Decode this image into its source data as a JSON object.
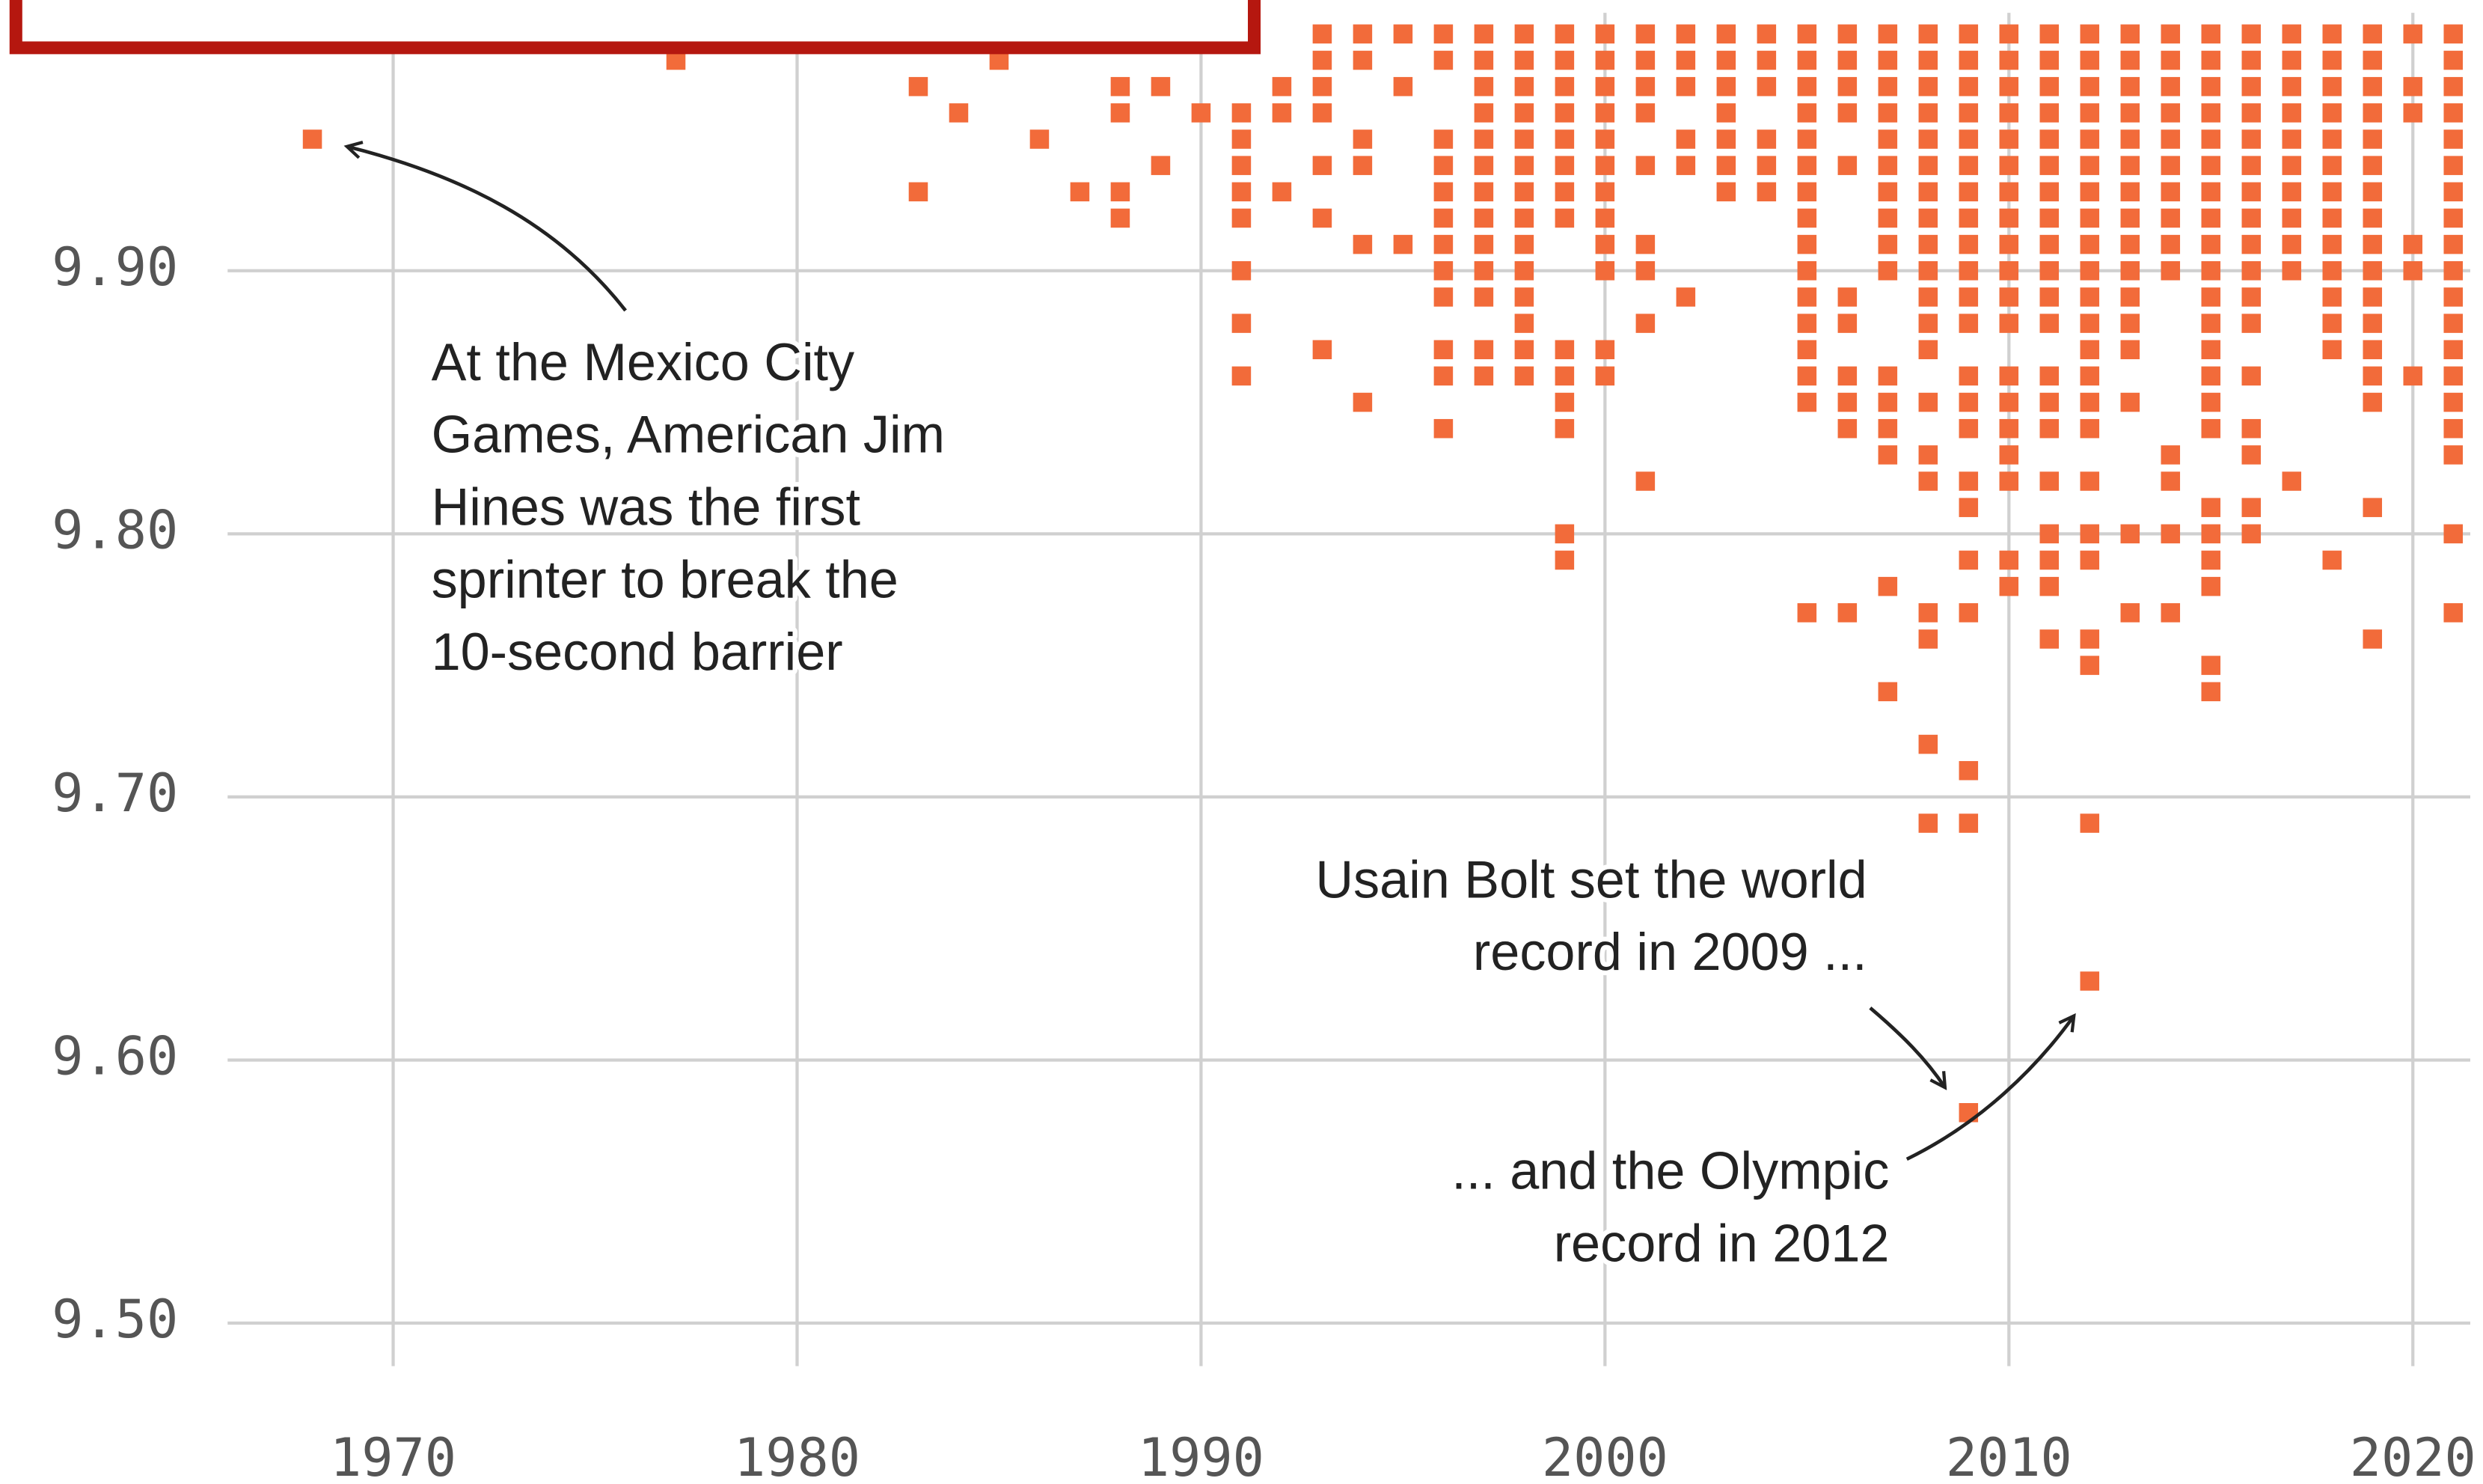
{
  "chart_data": {
    "type": "scatter",
    "color": "#f26b3a",
    "xlim": [
      1966,
      2021.5
    ],
    "ylim": [
      9.49,
      9.99
    ],
    "xticks": [
      1970,
      1980,
      1990,
      2000,
      2010,
      2020
    ],
    "yticks": [
      {
        "value": 9.5,
        "label": "9.50"
      },
      {
        "value": 9.6,
        "label": "9.60"
      },
      {
        "value": 9.7,
        "label": "9.70"
      },
      {
        "value": 9.8,
        "label": "9.80"
      },
      {
        "value": 9.9,
        "label": "9.90"
      }
    ],
    "grid": true,
    "annotations": [
      {
        "lines": [
          "At the Mexico City",
          "Games, American Jim",
          "Hines was the first",
          "sprinter to break the",
          "10-second barrier"
        ]
      },
      {
        "lines": [
          "Usain Bolt set the world",
          "record in 2009 ..."
        ]
      },
      {
        "lines": [
          "... and the Olympic",
          "record in 2012"
        ]
      }
    ],
    "x": [
      1968,
      1977,
      1983,
      1983,
      1984,
      1985,
      1986,
      1987,
      1988,
      1988,
      1988,
      1988,
      1989,
      1989,
      1990,
      1991,
      1991,
      1991,
      1991,
      1991,
      1991,
      1991,
      1991,
      1992,
      1992,
      1992,
      1993,
      1993,
      1993,
      1993,
      1993,
      1993,
      1993,
      1994,
      1994,
      1994,
      1994,
      1994,
      1994,
      1995,
      1995,
      1995,
      1996,
      1996,
      1996,
      1996,
      1996,
      1996,
      1996,
      1996,
      1996,
      1996,
      1996,
      1996,
      1997,
      1997,
      1997,
      1997,
      1997,
      1997,
      1997,
      1997,
      1997,
      1997,
      1997,
      1997,
      1997,
      1998,
      1998,
      1998,
      1998,
      1998,
      1998,
      1998,
      1998,
      1998,
      1998,
      1998,
      1998,
      1998,
      1998,
      1999,
      1999,
      1999,
      1999,
      1999,
      1999,
      1999,
      1999,
      1999,
      1999,
      1999,
      1999,
      1999,
      1999,
      2000,
      2000,
      2000,
      2000,
      2000,
      2000,
      2000,
      2000,
      2000,
      2000,
      2000,
      2000,
      2001,
      2001,
      2001,
      2001,
      2001,
      2001,
      2001,
      2001,
      2001,
      2002,
      2002,
      2002,
      2002,
      2002,
      2002,
      2003,
      2003,
      2003,
      2003,
      2003,
      2003,
      2003,
      2004,
      2004,
      2004,
      2004,
      2004,
      2004,
      2005,
      2005,
      2005,
      2005,
      2005,
      2005,
      2005,
      2005,
      2005,
      2005,
      2005,
      2005,
      2005,
      2005,
      2005,
      2005,
      2006,
      2006,
      2006,
      2006,
      2006,
      2006,
      2006,
      2006,
      2006,
      2006,
      2006,
      2007,
      2007,
      2007,
      2007,
      2007,
      2007,
      2007,
      2007,
      2007,
      2007,
      2007,
      2007,
      2007,
      2007,
      2007,
      2007,
      2008,
      2008,
      2008,
      2008,
      2008,
      2008,
      2008,
      2008,
      2008,
      2008,
      2008,
      2008,
      2008,
      2008,
      2008,
      2008,
      2008,
      2008,
      2008,
      2008,
      2009,
      2009,
      2009,
      2009,
      2009,
      2009,
      2009,
      2009,
      2009,
      2009,
      2009,
      2009,
      2009,
      2009,
      2009,
      2009,
      2009,
      2009,
      2009,
      2009,
      2009,
      2009,
      2010,
      2010,
      2010,
      2010,
      2010,
      2010,
      2010,
      2010,
      2010,
      2010,
      2010,
      2010,
      2010,
      2010,
      2010,
      2010,
      2010,
      2010,
      2010,
      2011,
      2011,
      2011,
      2011,
      2011,
      2011,
      2011,
      2011,
      2011,
      2011,
      2011,
      2011,
      2011,
      2011,
      2011,
      2011,
      2011,
      2011,
      2011,
      2011,
      2012,
      2012,
      2012,
      2012,
      2012,
      2012,
      2012,
      2012,
      2012,
      2012,
      2012,
      2012,
      2012,
      2012,
      2012,
      2012,
      2012,
      2012,
      2012,
      2012,
      2012,
      2012,
      2012,
      2013,
      2013,
      2013,
      2013,
      2013,
      2013,
      2013,
      2013,
      2013,
      2013,
      2013,
      2013,
      2013,
      2013,
      2013,
      2013,
      2014,
      2014,
      2014,
      2014,
      2014,
      2014,
      2014,
      2014,
      2014,
      2014,
      2014,
      2014,
      2014,
      2014,
      2015,
      2015,
      2015,
      2015,
      2015,
      2015,
      2015,
      2015,
      2015,
      2015,
      2015,
      2015,
      2015,
      2015,
      2015,
      2015,
      2015,
      2015,
      2015,
      2015,
      2015,
      2015,
      2016,
      2016,
      2016,
      2016,
      2016,
      2016,
      2016,
      2016,
      2016,
      2016,
      2016,
      2016,
      2016,
      2016,
      2016,
      2016,
      2016,
      2017,
      2017,
      2017,
      2017,
      2017,
      2017,
      2017,
      2017,
      2017,
      2017,
      2017,
      2018,
      2018,
      2018,
      2018,
      2018,
      2018,
      2018,
      2018,
      2018,
      2018,
      2018,
      2018,
      2018,
      2018,
      2019,
      2019,
      2019,
      2019,
      2019,
      2019,
      2019,
      2019,
      2019,
      2019,
      2019,
      2019,
      2019,
      2019,
      2019,
      2019,
      2019,
      2020,
      2020,
      2020,
      2020,
      2020,
      2020,
      2021,
      2021,
      2021,
      2021,
      2021,
      2021,
      2021,
      2021,
      2021,
      2021,
      2021,
      2021,
      2021,
      2021,
      2021,
      2021,
      2021,
      2021,
      2021
    ],
    "values": [
      9.95,
      9.98,
      9.97,
      9.93,
      9.96,
      9.98,
      9.95,
      9.93,
      9.97,
      9.96,
      9.93,
      9.92,
      9.97,
      9.94,
      9.96,
      9.96,
      9.95,
      9.94,
      9.93,
      9.92,
      9.9,
      9.88,
      9.86,
      9.97,
      9.96,
      9.93,
      9.99,
      9.98,
      9.97,
      9.96,
      9.94,
      9.92,
      9.87,
      9.99,
      9.98,
      9.95,
      9.94,
      9.91,
      9.85,
      9.99,
      9.97,
      9.91,
      9.99,
      9.98,
      9.95,
      9.94,
      9.93,
      9.92,
      9.91,
      9.9,
      9.89,
      9.87,
      9.86,
      9.84,
      9.99,
      9.98,
      9.97,
      9.96,
      9.95,
      9.94,
      9.93,
      9.92,
      9.91,
      9.9,
      9.89,
      9.87,
      9.86,
      9.99,
      9.98,
      9.97,
      9.96,
      9.95,
      9.94,
      9.93,
      9.92,
      9.91,
      9.9,
      9.89,
      9.88,
      9.87,
      9.86,
      9.99,
      9.98,
      9.97,
      9.96,
      9.95,
      9.94,
      9.93,
      9.92,
      9.87,
      9.86,
      9.85,
      9.84,
      9.8,
      9.79,
      9.99,
      9.98,
      9.97,
      9.96,
      9.95,
      9.94,
      9.93,
      9.92,
      9.91,
      9.9,
      9.87,
      9.86,
      9.99,
      9.98,
      9.97,
      9.96,
      9.94,
      9.91,
      9.9,
      9.88,
      9.82,
      9.99,
      9.98,
      9.97,
      9.95,
      9.94,
      9.89,
      9.99,
      9.98,
      9.97,
      9.96,
      9.95,
      9.94,
      9.93,
      9.99,
      9.98,
      9.97,
      9.95,
      9.94,
      9.93,
      9.99,
      9.98,
      9.97,
      9.96,
      9.95,
      9.94,
      9.93,
      9.92,
      9.91,
      9.9,
      9.89,
      9.88,
      9.87,
      9.86,
      9.85,
      9.77,
      9.99,
      9.98,
      9.97,
      9.96,
      9.94,
      9.89,
      9.88,
      9.86,
      9.85,
      9.84,
      9.77,
      9.99,
      9.98,
      9.97,
      9.96,
      9.95,
      9.94,
      9.93,
      9.92,
      9.91,
      9.9,
      9.86,
      9.85,
      9.84,
      9.83,
      9.78,
      9.74,
      9.99,
      9.98,
      9.97,
      9.96,
      9.95,
      9.94,
      9.93,
      9.92,
      9.91,
      9.9,
      9.89,
      9.88,
      9.87,
      9.85,
      9.83,
      9.82,
      9.77,
      9.76,
      9.72,
      9.69,
      9.99,
      9.98,
      9.97,
      9.96,
      9.95,
      9.94,
      9.93,
      9.92,
      9.91,
      9.9,
      9.89,
      9.88,
      9.86,
      9.85,
      9.84,
      9.82,
      9.81,
      9.79,
      9.77,
      9.71,
      9.69,
      9.58,
      9.99,
      9.98,
      9.97,
      9.96,
      9.95,
      9.94,
      9.93,
      9.92,
      9.91,
      9.9,
      9.89,
      9.88,
      9.86,
      9.85,
      9.84,
      9.83,
      9.82,
      9.79,
      9.78,
      9.99,
      9.98,
      9.97,
      9.96,
      9.95,
      9.94,
      9.93,
      9.92,
      9.91,
      9.9,
      9.89,
      9.88,
      9.86,
      9.85,
      9.84,
      9.82,
      9.8,
      9.79,
      9.78,
      9.76,
      9.99,
      9.98,
      9.97,
      9.96,
      9.95,
      9.94,
      9.93,
      9.92,
      9.91,
      9.9,
      9.89,
      9.88,
      9.87,
      9.86,
      9.85,
      9.84,
      9.82,
      9.8,
      9.79,
      9.76,
      9.75,
      9.69,
      9.63,
      9.99,
      9.98,
      9.97,
      9.96,
      9.95,
      9.94,
      9.93,
      9.92,
      9.91,
      9.9,
      9.89,
      9.88,
      9.87,
      9.85,
      9.8,
      9.77,
      9.99,
      9.98,
      9.97,
      9.96,
      9.95,
      9.94,
      9.93,
      9.92,
      9.91,
      9.9,
      9.83,
      9.82,
      9.8,
      9.77,
      9.99,
      9.98,
      9.97,
      9.96,
      9.95,
      9.94,
      9.93,
      9.92,
      9.91,
      9.9,
      9.89,
      9.88,
      9.87,
      9.86,
      9.85,
      9.84,
      9.81,
      9.8,
      9.79,
      9.78,
      9.75,
      9.74,
      9.99,
      9.98,
      9.97,
      9.96,
      9.95,
      9.94,
      9.93,
      9.92,
      9.91,
      9.9,
      9.89,
      9.88,
      9.86,
      9.84,
      9.83,
      9.81,
      9.8,
      9.99,
      9.98,
      9.97,
      9.96,
      9.95,
      9.94,
      9.93,
      9.92,
      9.91,
      9.9,
      9.82,
      9.99,
      9.98,
      9.97,
      9.96,
      9.95,
      9.94,
      9.93,
      9.92,
      9.91,
      9.9,
      9.89,
      9.88,
      9.87,
      9.79,
      9.99,
      9.98,
      9.97,
      9.96,
      9.95,
      9.94,
      9.93,
      9.92,
      9.91,
      9.9,
      9.89,
      9.88,
      9.87,
      9.86,
      9.85,
      9.81,
      9.76,
      9.99,
      9.97,
      9.96,
      9.91,
      9.9,
      9.86,
      9.99,
      9.98,
      9.97,
      9.96,
      9.95,
      9.94,
      9.93,
      9.92,
      9.91,
      9.9,
      9.89,
      9.88,
      9.87,
      9.86,
      9.85,
      9.84,
      9.83,
      9.8,
      9.77
    ]
  }
}
